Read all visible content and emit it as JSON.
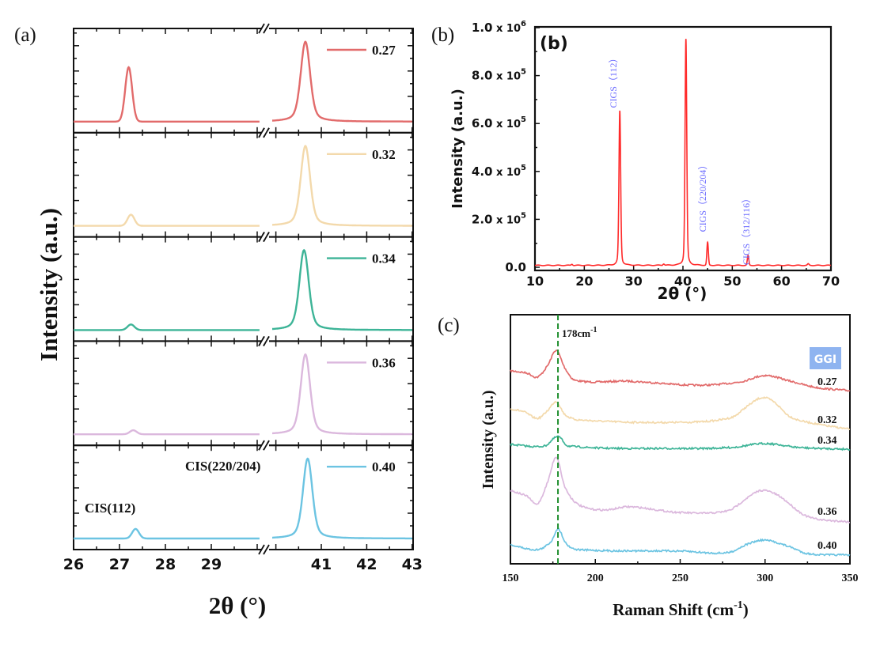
{
  "panel_labels": {
    "a": "(a)",
    "b": "(b)",
    "c": "(c)",
    "b_inner": "(b)"
  },
  "chart_data": [
    {
      "panel": "a",
      "type": "line",
      "layout": "stacked",
      "xlabel": "2θ (°)",
      "ylabel": "Intensity (a.u.)",
      "x_segments": [
        [
          26,
          30.1
        ],
        [
          39.85,
          43
        ]
      ],
      "x_break": true,
      "x_ticks": [
        26,
        27,
        28,
        29,
        41,
        42,
        43
      ],
      "annotations": [
        "CIS(112)",
        "CIS(220/204)"
      ],
      "series": [
        {
          "name": "0.27",
          "color": "#e26b6b",
          "peaks": [
            {
              "x": 27.2,
              "rel": 0.68
            },
            {
              "x": 40.65,
              "rel": 1.0
            }
          ]
        },
        {
          "name": "0.32",
          "color": "#f3d9ab",
          "peaks": [
            {
              "x": 27.25,
              "rel": 0.14
            },
            {
              "x": 40.65,
              "rel": 1.0
            }
          ]
        },
        {
          "name": "0.34",
          "color": "#3db497",
          "peaks": [
            {
              "x": 27.25,
              "rel": 0.07
            },
            {
              "x": 40.62,
              "rel": 1.0
            }
          ]
        },
        {
          "name": "0.36",
          "color": "#dbb8dd",
          "peaks": [
            {
              "x": 27.3,
              "rel": 0.05
            },
            {
              "x": 40.65,
              "rel": 1.0
            }
          ]
        },
        {
          "name": "0.40",
          "color": "#6cc4e2",
          "peaks": [
            {
              "x": 27.35,
              "rel": 0.12
            },
            {
              "x": 40.7,
              "rel": 1.0
            }
          ]
        }
      ]
    },
    {
      "panel": "b",
      "type": "line",
      "xlabel": "2θ (°)",
      "ylabel": "Intensity (a.u.)",
      "xlim": [
        10,
        70
      ],
      "ylim": [
        0,
        1000000
      ],
      "x_ticks": [
        10,
        20,
        30,
        40,
        50,
        60,
        70
      ],
      "y_ticks": [
        {
          "value": 0,
          "mantissa": "0.0",
          "base": "",
          "exp": ""
        },
        {
          "value": 200000,
          "mantissa": "2.0",
          "base": "x 10",
          "exp": "5"
        },
        {
          "value": 400000,
          "mantissa": "4.0",
          "base": "x 10",
          "exp": "5"
        },
        {
          "value": 600000,
          "mantissa": "6.0",
          "base": "x 10",
          "exp": "5"
        },
        {
          "value": 800000,
          "mantissa": "8.0",
          "base": "x 10",
          "exp": "5"
        },
        {
          "value": 1000000,
          "mantissa": "1.0",
          "base": "x 10",
          "exp": "6"
        }
      ],
      "color": "#ff2a2a",
      "baseline": 8000,
      "peaks": [
        {
          "x": 17.5,
          "y": 5000
        },
        {
          "x": 27.2,
          "y": 645000,
          "label": "CIGS（112）"
        },
        {
          "x": 36.1,
          "y": 6000
        },
        {
          "x": 40.6,
          "y": 945000
        },
        {
          "x": 45.0,
          "y": 95000,
          "label": "CIGS（220/204）"
        },
        {
          "x": 53.2,
          "y": 40000,
          "label": "CIGS（312/116）"
        },
        {
          "x": 65.4,
          "y": 6000
        }
      ],
      "label_color": "#6b6bff"
    },
    {
      "panel": "c",
      "type": "line",
      "xlabel_parts": [
        "Raman Shift (cm",
        "-1",
        ")"
      ],
      "ylabel": "Intensity (a.u.)",
      "xlim": [
        150,
        350
      ],
      "ylim": [
        0,
        100
      ],
      "x_ticks": [
        150,
        200,
        250,
        300,
        350
      ],
      "reference_line": {
        "x": 178,
        "label": "178cm",
        "label_sup": "-1",
        "color": "#1f8f2f"
      },
      "legend_title": "GGI",
      "legend_title_bg": "#8fb4f0",
      "series": [
        {
          "name": "0.27",
          "color": "#e26b6b",
          "points": [
            [
              150,
              77.5
            ],
            [
              160,
              76.5
            ],
            [
              166,
              75
            ],
            [
              172,
              79.7
            ],
            [
              177,
              85.7
            ],
            [
              182,
              78.7
            ],
            [
              188,
              73.7
            ],
            [
              220,
              73.3
            ],
            [
              260,
              71.7
            ],
            [
              285,
              73
            ],
            [
              300,
              75.6
            ],
            [
              315,
              73.3
            ],
            [
              330,
              70.8
            ],
            [
              350,
              69.5
            ]
          ]
        },
        {
          "name": "0.32",
          "color": "#f3d9ab",
          "points": [
            [
              150,
              62.2
            ],
            [
              158,
              61
            ],
            [
              166,
              58.4
            ],
            [
              172,
              61.6
            ],
            [
              177,
              65.1
            ],
            [
              182,
              60
            ],
            [
              190,
              57.8
            ],
            [
              250,
              56.8
            ],
            [
              280,
              58.7
            ],
            [
              290,
              63.5
            ],
            [
              298,
              66.7
            ],
            [
              305,
              65.1
            ],
            [
              315,
              59
            ],
            [
              330,
              56.2
            ],
            [
              350,
              54
            ]
          ]
        },
        {
          "name": "0.34",
          "color": "#3db497",
          "points": [
            [
              150,
              47.9
            ],
            [
              170,
              47.3
            ],
            [
              178,
              51.1
            ],
            [
              184,
              47.3
            ],
            [
              250,
              46.3
            ],
            [
              280,
              46.7
            ],
            [
              300,
              48.3
            ],
            [
              320,
              46.7
            ],
            [
              350,
              46
            ]
          ]
        },
        {
          "name": "0.36",
          "color": "#dbb8dd",
          "points": [
            [
              150,
              29.5
            ],
            [
              160,
              27
            ],
            [
              166,
              24.1
            ],
            [
              172,
              33
            ],
            [
              177,
              42.9
            ],
            [
              182,
              31
            ],
            [
              190,
              23.8
            ],
            [
              205,
              21.6
            ],
            [
              220,
              22.9
            ],
            [
              250,
              20.6
            ],
            [
              278,
              21.3
            ],
            [
              290,
              26.7
            ],
            [
              298,
              29.5
            ],
            [
              308,
              27.3
            ],
            [
              325,
              19
            ],
            [
              350,
              16.8
            ]
          ]
        },
        {
          "name": "0.40",
          "color": "#6cc4e2",
          "points": [
            [
              150,
              7.6
            ],
            [
              166,
              5.7
            ],
            [
              174,
              9
            ],
            [
              178,
              14
            ],
            [
              183,
              8
            ],
            [
              190,
              5.7
            ],
            [
              250,
              5.1
            ],
            [
              278,
              4.5
            ],
            [
              290,
              8
            ],
            [
              300,
              9.5
            ],
            [
              315,
              6.7
            ],
            [
              325,
              4.1
            ],
            [
              350,
              3.5
            ]
          ]
        }
      ]
    }
  ]
}
